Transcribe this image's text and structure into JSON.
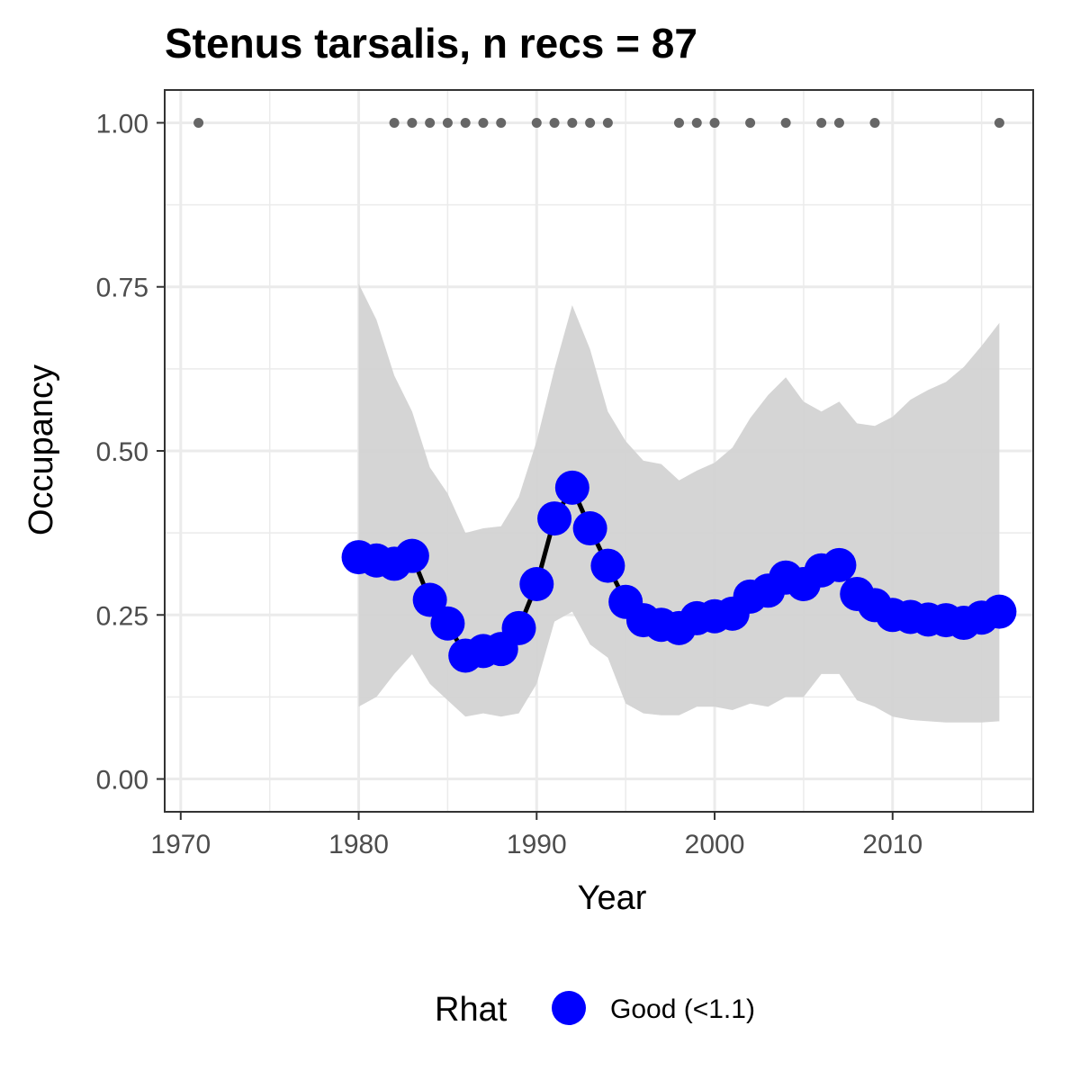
{
  "chart_data": {
    "type": "line",
    "title": "Stenus tarsalis, n recs = 87",
    "xlabel": "Year",
    "ylabel": "Occupancy",
    "xlim": [
      1969.1,
      2017.9
    ],
    "ylim": [
      -0.05,
      1.05
    ],
    "x_ticks": [
      1970,
      1980,
      1990,
      2000,
      2010
    ],
    "x_tick_labels": [
      "1970",
      "1980",
      "1990",
      "2000",
      "2010"
    ],
    "y_ticks": [
      0.0,
      0.25,
      0.5,
      0.75,
      1.0
    ],
    "y_tick_labels": [
      "0.00",
      "0.25",
      "0.50",
      "0.75",
      "1.00"
    ],
    "grid": true,
    "legend": {
      "title": "Rhat",
      "position": "bottom",
      "entries": [
        {
          "label": "Good (<1.1)",
          "color": "#0000ff"
        }
      ]
    },
    "colors": {
      "line": "#000000",
      "points": "#0000ff",
      "ribbon": "#d3d3d3",
      "record_dots": "#666666",
      "grid": "#ebebeb"
    },
    "series": [
      {
        "years": [
          1980,
          1981,
          1982,
          1983,
          1984,
          1985,
          1986,
          1987,
          1988,
          1989,
          1990,
          1991,
          1992,
          1993,
          1994,
          1995,
          1996,
          1997,
          1998,
          1999,
          2000,
          2001,
          2002,
          2003,
          2004,
          2005,
          2006,
          2007,
          2008,
          2009,
          2010,
          2011,
          2012,
          2013,
          2014,
          2015,
          2016
        ],
        "mean": [
          0.338,
          0.333,
          0.328,
          0.34,
          0.273,
          0.237,
          0.188,
          0.195,
          0.198,
          0.23,
          0.297,
          0.397,
          0.444,
          0.382,
          0.325,
          0.27,
          0.242,
          0.235,
          0.23,
          0.245,
          0.248,
          0.252,
          0.278,
          0.287,
          0.307,
          0.297,
          0.318,
          0.326,
          0.282,
          0.265,
          0.25,
          0.247,
          0.243,
          0.242,
          0.238,
          0.246,
          0.255
        ],
        "lower": [
          0.11,
          0.125,
          0.16,
          0.19,
          0.145,
          0.12,
          0.095,
          0.1,
          0.095,
          0.1,
          0.145,
          0.24,
          0.255,
          0.205,
          0.185,
          0.115,
          0.1,
          0.097,
          0.097,
          0.11,
          0.11,
          0.105,
          0.115,
          0.11,
          0.125,
          0.125,
          0.16,
          0.16,
          0.12,
          0.11,
          0.095,
          0.09,
          0.088,
          0.086,
          0.086,
          0.086,
          0.088
        ],
        "upper": [
          0.755,
          0.7,
          0.615,
          0.56,
          0.475,
          0.435,
          0.375,
          0.382,
          0.385,
          0.43,
          0.515,
          0.625,
          0.722,
          0.655,
          0.56,
          0.515,
          0.485,
          0.48,
          0.455,
          0.47,
          0.482,
          0.505,
          0.55,
          0.585,
          0.612,
          0.575,
          0.56,
          0.575,
          0.542,
          0.538,
          0.552,
          0.578,
          0.593,
          0.605,
          0.628,
          0.66,
          0.695
        ]
      }
    ],
    "records": {
      "y": 1.0,
      "years": [
        1971,
        1982,
        1983,
        1984,
        1985,
        1986,
        1987,
        1988,
        1990,
        1991,
        1992,
        1993,
        1994,
        1998,
        1999,
        2000,
        2002,
        2004,
        2006,
        2007,
        2009,
        2016
      ]
    }
  }
}
